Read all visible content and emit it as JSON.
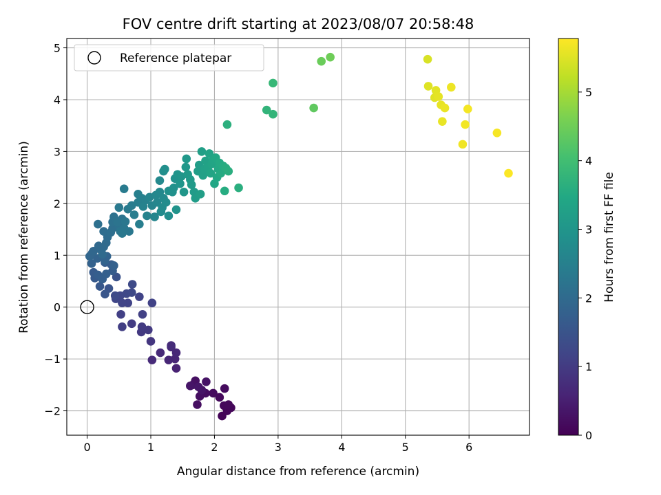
{
  "chart_data": {
    "type": "scatter",
    "title": "FOV centre drift starting at 2023/08/07 20:58:48",
    "xlabel": "Angular distance from reference (arcmin)",
    "ylabel": "Rotation from reference (arcmin)",
    "xlim": [
      -0.32,
      6.95
    ],
    "ylim": [
      -2.47,
      5.18
    ],
    "xticks": [
      0,
      1,
      2,
      3,
      4,
      5,
      6
    ],
    "yticks": [
      -2,
      -1,
      0,
      1,
      2,
      3,
      4,
      5
    ],
    "grid": true,
    "legend": {
      "placement": "top-left",
      "entries": [
        "Reference platepar"
      ]
    },
    "reference_point": {
      "x": 0,
      "y": 0,
      "marker": "open-circle",
      "name": "Reference platepar"
    },
    "colorbar": {
      "label": "Hours from first FF file",
      "min": 0,
      "max": 5.78,
      "ticks": [
        0,
        1,
        2,
        3,
        4,
        5
      ],
      "colormap": "viridis"
    },
    "points": [
      {
        "x": 2.12,
        "y": -2.1,
        "t": 0.05
      },
      {
        "x": 2.2,
        "y": -2.0,
        "t": 0.07
      },
      {
        "x": 2.26,
        "y": -1.94,
        "t": 0.08
      },
      {
        "x": 2.15,
        "y": -1.9,
        "t": 0.1
      },
      {
        "x": 2.22,
        "y": -1.88,
        "t": 0.11
      },
      {
        "x": 2.08,
        "y": -1.74,
        "t": 0.13
      },
      {
        "x": 1.98,
        "y": -1.66,
        "t": 0.15
      },
      {
        "x": 2.16,
        "y": -1.57,
        "t": 0.17
      },
      {
        "x": 1.86,
        "y": -1.66,
        "t": 0.19
      },
      {
        "x": 1.77,
        "y": -1.72,
        "t": 0.21
      },
      {
        "x": 1.73,
        "y": -1.88,
        "t": 0.23
      },
      {
        "x": 1.7,
        "y": -1.42,
        "t": 0.25
      },
      {
        "x": 1.66,
        "y": -1.5,
        "t": 0.27
      },
      {
        "x": 1.87,
        "y": -1.44,
        "t": 0.29
      },
      {
        "x": 1.8,
        "y": -1.6,
        "t": 0.31
      },
      {
        "x": 1.62,
        "y": -1.52,
        "t": 0.33
      },
      {
        "x": 1.75,
        "y": -1.54,
        "t": 0.35
      },
      {
        "x": 1.4,
        "y": -1.18,
        "t": 0.55
      },
      {
        "x": 1.38,
        "y": -1.0,
        "t": 0.6
      },
      {
        "x": 1.28,
        "y": -1.02,
        "t": 0.62
      },
      {
        "x": 1.4,
        "y": -0.88,
        "t": 0.64
      },
      {
        "x": 1.32,
        "y": -0.77,
        "t": 0.66
      },
      {
        "x": 1.15,
        "y": -0.88,
        "t": 0.68
      },
      {
        "x": 1.02,
        "y": -1.02,
        "t": 0.7
      },
      {
        "x": 1.32,
        "y": -0.74,
        "t": 0.72
      },
      {
        "x": 1.0,
        "y": -0.66,
        "t": 0.9
      },
      {
        "x": 0.85,
        "y": -0.48,
        "t": 0.95
      },
      {
        "x": 0.96,
        "y": -0.44,
        "t": 0.97
      },
      {
        "x": 0.86,
        "y": -0.38,
        "t": 1.0
      },
      {
        "x": 0.7,
        "y": -0.32,
        "t": 1.02
      },
      {
        "x": 0.55,
        "y": -0.38,
        "t": 1.05
      },
      {
        "x": 0.53,
        "y": -0.14,
        "t": 1.08
      },
      {
        "x": 0.87,
        "y": -0.14,
        "t": 1.1
      },
      {
        "x": 1.02,
        "y": 0.08,
        "t": 1.12
      },
      {
        "x": 0.82,
        "y": 0.2,
        "t": 1.14
      },
      {
        "x": 0.64,
        "y": 0.08,
        "t": 1.16
      },
      {
        "x": 0.55,
        "y": 0.08,
        "t": 1.18
      },
      {
        "x": 0.45,
        "y": 0.16,
        "t": 1.2
      },
      {
        "x": 0.52,
        "y": 0.22,
        "t": 1.22
      },
      {
        "x": 0.62,
        "y": 0.26,
        "t": 1.24
      },
      {
        "x": 0.7,
        "y": 0.28,
        "t": 1.26
      },
      {
        "x": 0.71,
        "y": 0.44,
        "t": 1.28
      },
      {
        "x": 0.44,
        "y": 0.22,
        "t": 1.3
      },
      {
        "x": 0.46,
        "y": 0.58,
        "t": 1.45
      },
      {
        "x": 0.34,
        "y": 0.36,
        "t": 1.5
      },
      {
        "x": 0.28,
        "y": 0.25,
        "t": 1.55
      },
      {
        "x": 0.2,
        "y": 0.4,
        "t": 1.58
      },
      {
        "x": 0.12,
        "y": 0.56,
        "t": 1.62
      },
      {
        "x": 0.1,
        "y": 0.67,
        "t": 1.64
      },
      {
        "x": 0.38,
        "y": 0.82,
        "t": 1.66
      },
      {
        "x": 0.4,
        "y": 0.7,
        "t": 1.68
      },
      {
        "x": 0.28,
        "y": 0.86,
        "t": 1.7
      },
      {
        "x": 0.17,
        "y": 0.62,
        "t": 1.72
      },
      {
        "x": 0.24,
        "y": 0.54,
        "t": 1.74
      },
      {
        "x": 0.3,
        "y": 0.64,
        "t": 1.76
      },
      {
        "x": 0.42,
        "y": 0.8,
        "t": 1.78
      },
      {
        "x": 0.07,
        "y": 0.84,
        "t": 1.8
      },
      {
        "x": 0.16,
        "y": 0.94,
        "t": 1.82
      },
      {
        "x": 0.31,
        "y": 0.98,
        "t": 1.84
      },
      {
        "x": 0.28,
        "y": 0.9,
        "t": 1.86
      },
      {
        "x": 0.08,
        "y": 1.04,
        "t": 1.88
      },
      {
        "x": 0.04,
        "y": 0.98,
        "t": 1.9
      },
      {
        "x": 0.1,
        "y": 1.08,
        "t": 1.92
      },
      {
        "x": 0.22,
        "y": 1.1,
        "t": 1.94
      },
      {
        "x": 0.18,
        "y": 1.18,
        "t": 1.96
      },
      {
        "x": 0.26,
        "y": 1.16,
        "t": 1.98
      },
      {
        "x": 0.3,
        "y": 1.24,
        "t": 2.0
      },
      {
        "x": 0.24,
        "y": 1.02,
        "t": 2.02
      },
      {
        "x": 0.32,
        "y": 1.35,
        "t": 2.04
      },
      {
        "x": 0.26,
        "y": 1.46,
        "t": 2.06
      },
      {
        "x": 0.37,
        "y": 1.44,
        "t": 2.08
      },
      {
        "x": 0.4,
        "y": 1.52,
        "t": 2.1
      },
      {
        "x": 0.17,
        "y": 1.6,
        "t": 2.12
      },
      {
        "x": 0.4,
        "y": 1.64,
        "t": 2.14
      },
      {
        "x": 0.5,
        "y": 1.58,
        "t": 2.16
      },
      {
        "x": 0.42,
        "y": 1.74,
        "t": 2.18
      },
      {
        "x": 0.55,
        "y": 1.7,
        "t": 2.2
      },
      {
        "x": 0.48,
        "y": 1.64,
        "t": 2.22
      },
      {
        "x": 0.52,
        "y": 1.46,
        "t": 2.24
      },
      {
        "x": 0.58,
        "y": 1.52,
        "t": 2.26
      },
      {
        "x": 0.6,
        "y": 1.65,
        "t": 2.28
      },
      {
        "x": 0.66,
        "y": 1.46,
        "t": 2.3
      },
      {
        "x": 0.55,
        "y": 1.42,
        "t": 2.32
      },
      {
        "x": 0.5,
        "y": 1.92,
        "t": 2.34
      },
      {
        "x": 0.64,
        "y": 1.89,
        "t": 2.36
      },
      {
        "x": 0.58,
        "y": 2.28,
        "t": 2.38
      },
      {
        "x": 0.7,
        "y": 1.96,
        "t": 2.4
      },
      {
        "x": 0.74,
        "y": 1.78,
        "t": 2.42
      },
      {
        "x": 0.82,
        "y": 1.6,
        "t": 2.44
      },
      {
        "x": 0.8,
        "y": 2.02,
        "t": 2.46
      },
      {
        "x": 0.8,
        "y": 2.18,
        "t": 2.48
      },
      {
        "x": 0.86,
        "y": 2.1,
        "t": 2.5
      },
      {
        "x": 0.92,
        "y": 2.06,
        "t": 2.52
      },
      {
        "x": 0.88,
        "y": 1.94,
        "t": 2.54
      },
      {
        "x": 0.94,
        "y": 1.76,
        "t": 2.56
      },
      {
        "x": 0.98,
        "y": 2.12,
        "t": 2.58
      },
      {
        "x": 1.02,
        "y": 1.96,
        "t": 2.6
      },
      {
        "x": 1.06,
        "y": 1.74,
        "t": 2.62
      },
      {
        "x": 1.1,
        "y": 2.02,
        "t": 2.64
      },
      {
        "x": 1.08,
        "y": 2.16,
        "t": 2.66
      },
      {
        "x": 1.14,
        "y": 2.22,
        "t": 2.68
      },
      {
        "x": 1.14,
        "y": 2.44,
        "t": 2.7
      },
      {
        "x": 1.2,
        "y": 2.1,
        "t": 2.72
      },
      {
        "x": 1.16,
        "y": 1.84,
        "t": 2.74
      },
      {
        "x": 1.18,
        "y": 1.92,
        "t": 2.76
      },
      {
        "x": 1.24,
        "y": 2.02,
        "t": 2.78
      },
      {
        "x": 1.28,
        "y": 1.76,
        "t": 2.8
      },
      {
        "x": 1.2,
        "y": 2.62,
        "t": 2.82
      },
      {
        "x": 1.22,
        "y": 2.66,
        "t": 2.84
      },
      {
        "x": 1.28,
        "y": 2.24,
        "t": 2.86
      },
      {
        "x": 1.34,
        "y": 2.22,
        "t": 2.88
      },
      {
        "x": 1.36,
        "y": 2.3,
        "t": 2.9
      },
      {
        "x": 1.38,
        "y": 2.48,
        "t": 2.92
      },
      {
        "x": 1.4,
        "y": 1.88,
        "t": 2.94
      },
      {
        "x": 1.42,
        "y": 2.56,
        "t": 2.96
      },
      {
        "x": 1.46,
        "y": 2.38,
        "t": 2.98
      },
      {
        "x": 1.48,
        "y": 2.52,
        "t": 3.0
      },
      {
        "x": 1.52,
        "y": 2.22,
        "t": 3.02
      },
      {
        "x": 1.55,
        "y": 2.7,
        "t": 3.04
      },
      {
        "x": 1.56,
        "y": 2.86,
        "t": 3.06
      },
      {
        "x": 1.58,
        "y": 2.56,
        "t": 3.08
      },
      {
        "x": 1.62,
        "y": 2.46,
        "t": 3.1
      },
      {
        "x": 1.64,
        "y": 2.36,
        "t": 3.12
      },
      {
        "x": 1.68,
        "y": 2.22,
        "t": 3.14
      },
      {
        "x": 1.7,
        "y": 2.1,
        "t": 3.16
      },
      {
        "x": 1.74,
        "y": 2.62,
        "t": 3.18
      },
      {
        "x": 1.76,
        "y": 2.74,
        "t": 3.2
      },
      {
        "x": 1.78,
        "y": 2.18,
        "t": 3.22
      },
      {
        "x": 1.8,
        "y": 3.0,
        "t": 3.24
      },
      {
        "x": 1.82,
        "y": 2.54,
        "t": 3.26
      },
      {
        "x": 1.84,
        "y": 2.66,
        "t": 3.28
      },
      {
        "x": 1.86,
        "y": 2.82,
        "t": 3.3
      },
      {
        "x": 1.9,
        "y": 2.7,
        "t": 3.32
      },
      {
        "x": 1.92,
        "y": 2.96,
        "t": 3.34
      },
      {
        "x": 1.94,
        "y": 2.58,
        "t": 3.36
      },
      {
        "x": 1.96,
        "y": 2.76,
        "t": 3.38
      },
      {
        "x": 1.98,
        "y": 2.84,
        "t": 3.4
      },
      {
        "x": 2.0,
        "y": 2.38,
        "t": 3.42
      },
      {
        "x": 2.02,
        "y": 2.88,
        "t": 3.44
      },
      {
        "x": 2.04,
        "y": 2.5,
        "t": 3.46
      },
      {
        "x": 2.06,
        "y": 2.66,
        "t": 3.48
      },
      {
        "x": 2.08,
        "y": 2.78,
        "t": 3.5
      },
      {
        "x": 2.1,
        "y": 2.58,
        "t": 3.52
      },
      {
        "x": 2.14,
        "y": 2.72,
        "t": 3.54
      },
      {
        "x": 2.16,
        "y": 2.24,
        "t": 3.56
      },
      {
        "x": 2.18,
        "y": 2.68,
        "t": 3.58
      },
      {
        "x": 2.22,
        "y": 2.62,
        "t": 3.6
      },
      {
        "x": 2.38,
        "y": 2.3,
        "t": 3.62
      },
      {
        "x": 2.2,
        "y": 3.52,
        "t": 3.65
      },
      {
        "x": 2.82,
        "y": 3.8,
        "t": 3.75
      },
      {
        "x": 2.92,
        "y": 3.72,
        "t": 3.78
      },
      {
        "x": 2.92,
        "y": 4.32,
        "t": 3.85
      },
      {
        "x": 3.56,
        "y": 3.84,
        "t": 4.35
      },
      {
        "x": 3.68,
        "y": 4.74,
        "t": 4.45
      },
      {
        "x": 3.82,
        "y": 4.82,
        "t": 4.5
      },
      {
        "x": 5.35,
        "y": 4.78,
        "t": 5.45
      },
      {
        "x": 5.36,
        "y": 4.26,
        "t": 5.5
      },
      {
        "x": 5.46,
        "y": 4.04,
        "t": 5.52
      },
      {
        "x": 5.48,
        "y": 4.18,
        "t": 5.54
      },
      {
        "x": 5.52,
        "y": 4.06,
        "t": 5.56
      },
      {
        "x": 5.56,
        "y": 3.9,
        "t": 5.58
      },
      {
        "x": 5.58,
        "y": 3.58,
        "t": 5.6
      },
      {
        "x": 5.62,
        "y": 3.84,
        "t": 5.62
      },
      {
        "x": 5.72,
        "y": 4.24,
        "t": 5.64
      },
      {
        "x": 5.9,
        "y": 3.14,
        "t": 5.66
      },
      {
        "x": 5.94,
        "y": 3.52,
        "t": 5.68
      },
      {
        "x": 5.98,
        "y": 3.82,
        "t": 5.7
      },
      {
        "x": 6.44,
        "y": 3.36,
        "t": 5.72
      },
      {
        "x": 6.62,
        "y": 2.58,
        "t": 5.76
      }
    ]
  }
}
